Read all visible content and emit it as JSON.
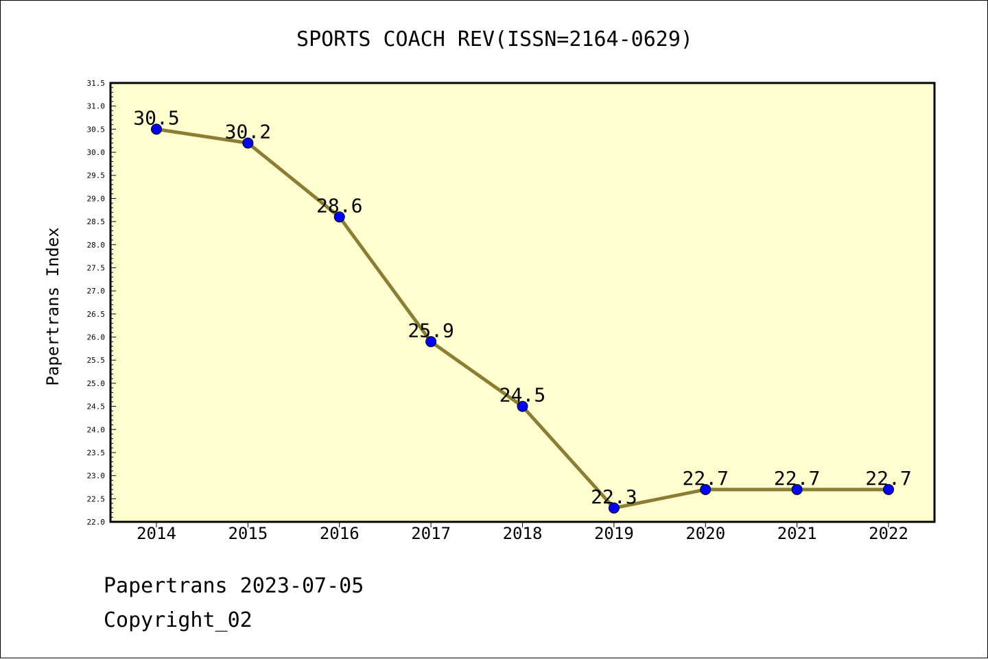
{
  "chart_data": {
    "type": "line",
    "title": "SPORTS COACH REV(ISSN=2164-0629)",
    "ylabel": "Papertrans Index",
    "xlabel": "",
    "categories": [
      "2014",
      "2015",
      "2016",
      "2017",
      "2018",
      "2019",
      "2020",
      "2021",
      "2022"
    ],
    "series": [
      {
        "values": [
          30.5,
          30.2,
          28.6,
          25.9,
          24.5,
          22.3,
          22.7,
          22.7,
          22.7
        ],
        "labels": [
          "30.5",
          "30.2",
          "28.6",
          "25.9",
          "24.5",
          "22.3",
          "22.7",
          "22.7",
          "22.7"
        ]
      }
    ],
    "ylim": [
      22.0,
      31.5
    ],
    "yticks": [
      "22.0",
      "22.5",
      "23.0",
      "23.5",
      "24.0",
      "24.5",
      "25.0",
      "25.5",
      "26.0",
      "26.5",
      "27.0",
      "27.5",
      "28.0",
      "28.5",
      "29.0",
      "29.5",
      "30.0",
      "30.5",
      "31.0",
      "31.5"
    ],
    "grid": false,
    "colors": {
      "plot_background": "#ffffd0",
      "line": "#8b7d32",
      "marker": "#0000ff"
    }
  },
  "footer": {
    "line1": "Papertrans 2023-07-05",
    "line2": "Copyright_02"
  }
}
